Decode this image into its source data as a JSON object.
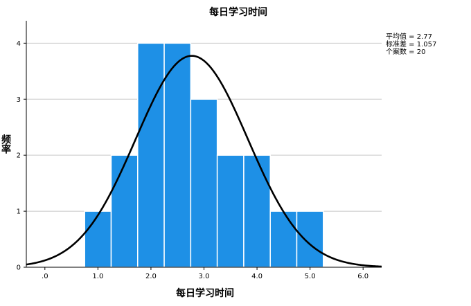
{
  "chart_data": {
    "type": "bar",
    "title": "每日学习时间",
    "xlabel": "每日学习时间",
    "ylabel": "频率",
    "bin_width": 0.5,
    "bins": [
      {
        "start": 0.75,
        "end": 1.25,
        "count": 1
      },
      {
        "start": 1.25,
        "end": 1.75,
        "count": 2
      },
      {
        "start": 1.75,
        "end": 2.25,
        "count": 4
      },
      {
        "start": 2.25,
        "end": 2.75,
        "count": 4
      },
      {
        "start": 2.75,
        "end": 3.25,
        "count": 3
      },
      {
        "start": 3.25,
        "end": 3.75,
        "count": 2
      },
      {
        "start": 3.75,
        "end": 4.25,
        "count": 2
      },
      {
        "start": 4.25,
        "end": 4.75,
        "count": 1
      },
      {
        "start": 4.75,
        "end": 5.25,
        "count": 1
      }
    ],
    "x_ticks": [
      ".0",
      "1.0",
      "2.0",
      "3.0",
      "4.0",
      "5.0",
      "6.0"
    ],
    "y_ticks": [
      "0",
      "1",
      "2",
      "3",
      "4"
    ],
    "xlim": [
      -0.35,
      6.35
    ],
    "ylim": [
      0,
      4.4
    ],
    "grid": true,
    "bar_color": "#1e90e6",
    "normal_curve": {
      "mean": 2.77,
      "sd": 1.057,
      "n": 20,
      "color": "#000000"
    },
    "stats_legend": [
      "平均值 = 2.77",
      "标准差 = 1.057",
      "个案数 = 20"
    ]
  }
}
